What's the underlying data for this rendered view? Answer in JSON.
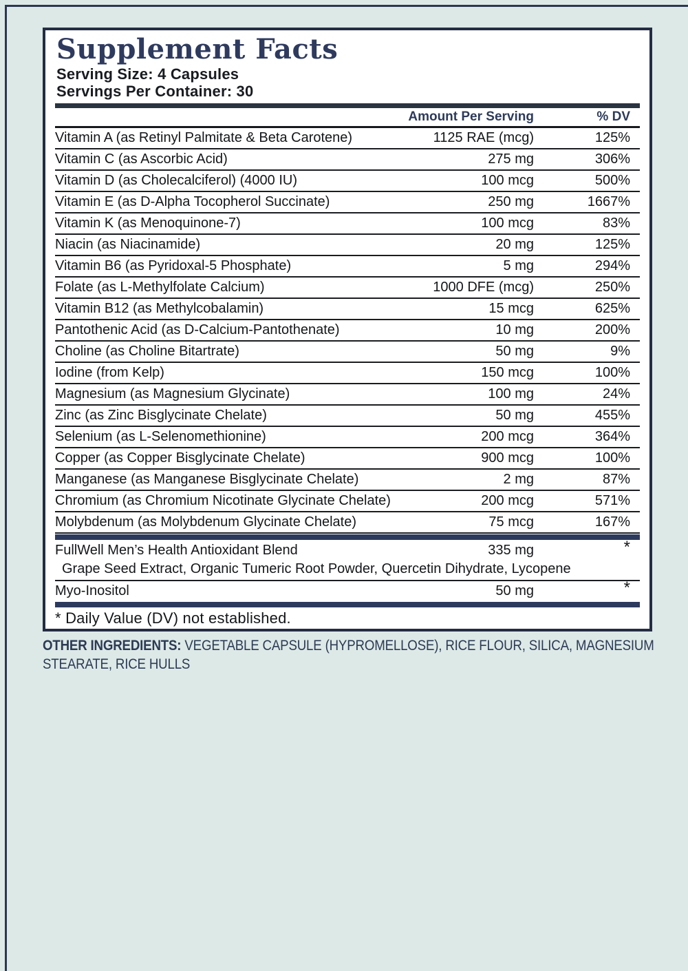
{
  "colors": {
    "background": "#dde9e7",
    "panel_background": "#ffffff",
    "navy_accent": "#2c3a5e",
    "border_navy": "#232d43",
    "text_black": "#141619",
    "title_navy": "#2e3a5e"
  },
  "panel": {
    "title": "Supplement Facts",
    "serving_size": "Serving Size: 4 Capsules",
    "servings_per_container": "Servings Per Container: 30",
    "columns": {
      "amount": "Amount Per Serving",
      "dv": "% DV"
    },
    "rows": [
      {
        "name": "Vitamin A (as Retinyl Palmitate & Beta Carotene)",
        "amount": "1125 RAE (mcg)",
        "dv": "125%"
      },
      {
        "name": "Vitamin C (as Ascorbic Acid)",
        "amount": "275 mg",
        "dv": "306%"
      },
      {
        "name": "Vitamin D (as Cholecalciferol) (4000 IU)",
        "amount": "100 mcg",
        "dv": "500%"
      },
      {
        "name": "Vitamin E (as D-Alpha Tocopherol Succinate)",
        "amount": "250 mg",
        "dv": "1667%"
      },
      {
        "name": "Vitamin K (as Menoquinone-7)",
        "amount": "100 mcg",
        "dv": "83%"
      },
      {
        "name": "Niacin (as Niacinamide)",
        "amount": "20 mg",
        "dv": "125%"
      },
      {
        "name": "Vitamin B6 (as Pyridoxal-5 Phosphate)",
        "amount": "5 mg",
        "dv": "294%"
      },
      {
        "name": "Folate (as L-Methylfolate Calcium)",
        "amount": "1000 DFE (mcg)",
        "dv": "250%"
      },
      {
        "name": "Vitamin B12 (as Methylcobalamin)",
        "amount": "15 mcg",
        "dv": "625%"
      },
      {
        "name": "Pantothenic Acid (as D-Calcium-Pantothenate)",
        "amount": "10 mg",
        "dv": "200%"
      },
      {
        "name": "Choline (as Choline Bitartrate)",
        "amount": "50 mg",
        "dv": "9%"
      },
      {
        "name": "Iodine (from Kelp)",
        "amount": "150 mcg",
        "dv": "100%"
      },
      {
        "name": "Magnesium (as Magnesium Glycinate)",
        "amount": "100 mg",
        "dv": "24%"
      },
      {
        "name": "Zinc (as Zinc Bisglycinate Chelate)",
        "amount": "50 mg",
        "dv": "455%"
      },
      {
        "name": "Selenium (as L-Selenomethionine)",
        "amount": "200 mcg",
        "dv": "364%"
      },
      {
        "name": "Copper (as Copper Bisglycinate Chelate)",
        "amount": "900 mcg",
        "dv": "100%"
      },
      {
        "name": "Manganese (as Manganese Bisglycinate Chelate)",
        "amount": "2 mg",
        "dv": "87%"
      },
      {
        "name": "Chromium (as Chromium Nicotinate Glycinate Chelate)",
        "amount": "200 mcg",
        "dv": "571%"
      },
      {
        "name": "Molybdenum (as Molybdenum Glycinate Chelate)",
        "amount": "75 mcg",
        "dv": "167%"
      }
    ],
    "blend": {
      "name": "FullWell Men’s Health Antioxidant Blend",
      "amount": "335 mg",
      "dv": "*",
      "ingredients": "Grape Seed Extract, Organic Tumeric Root Powder, Quercetin Dihydrate, Lycopene"
    },
    "extra_row": {
      "name": "Myo-Inositol",
      "amount": "50 mg",
      "dv": "*"
    },
    "footnote": "* Daily Value (DV) not established."
  },
  "other_ingredients": {
    "label": "OTHER INGREDIENTS:",
    "text": " VEGETABLE CAPSULE (HYPROMELLOSE), RICE FLOUR, SILICA, MAGNESIUM STEARATE, RICE HULLS"
  }
}
